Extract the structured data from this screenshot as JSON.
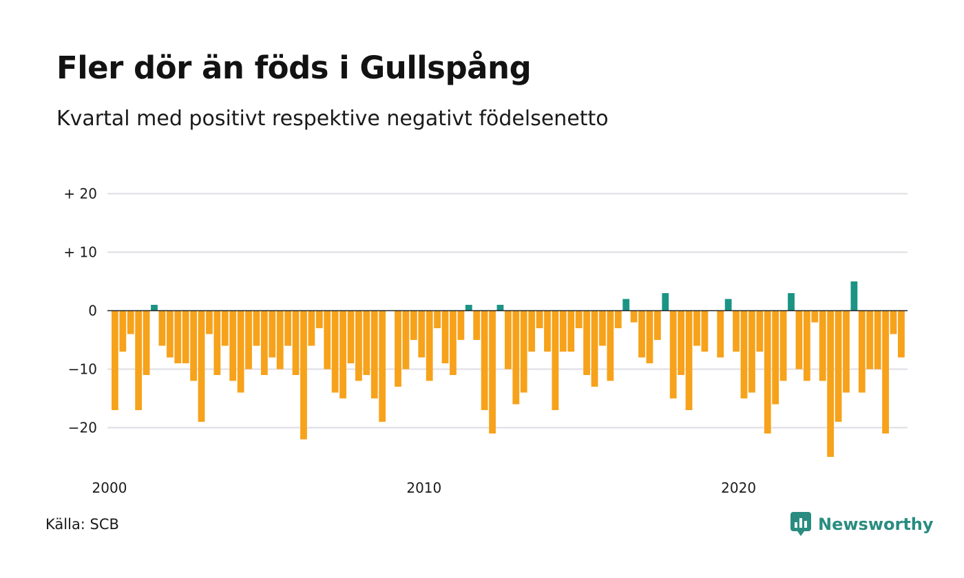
{
  "title": "Fler dör än föds i Gullspång",
  "subtitle": "Kvartal med positivt respektive negativt födelsenetto",
  "source": "Källa: SCB",
  "brand": "Newsworthy",
  "colors": {
    "positive": "#1b9484",
    "negative": "#f7a21b",
    "grid": "#dddde3",
    "zero_line": "#222222",
    "brand": "#2a8c80"
  },
  "chart_data": {
    "type": "bar",
    "title": "Fler dör än föds i Gullspång",
    "subtitle": "Kvartal med positivt respektive negativt födelsenetto",
    "xlabel": "",
    "ylabel": "",
    "ylim": [
      -27,
      22
    ],
    "y_ticks": [
      {
        "value": 20,
        "label": "+ 20"
      },
      {
        "value": 10,
        "label": "+ 10"
      },
      {
        "value": 0,
        "label": "0"
      },
      {
        "value": -10,
        "label": "−10"
      },
      {
        "value": -20,
        "label": "−20"
      }
    ],
    "x_ticks": [
      {
        "quarter_index": 0,
        "label": "2000"
      },
      {
        "quarter_index": 40,
        "label": "2010"
      },
      {
        "quarter_index": 80,
        "label": "2020"
      }
    ],
    "start": "2000 Q1",
    "frequency": "quarter",
    "grid": true,
    "values": [
      -17,
      -7,
      -4,
      -17,
      -11,
      1,
      -6,
      -8,
      -9,
      -9,
      -12,
      -19,
      -4,
      -11,
      -6,
      -12,
      -14,
      -10,
      -6,
      -11,
      -8,
      -10,
      -6,
      -11,
      -22,
      -6,
      -3,
      -10,
      -14,
      -15,
      -9,
      -12,
      -11,
      -15,
      -19,
      0,
      -13,
      -10,
      -5,
      -8,
      -12,
      -3,
      -9,
      -11,
      -5,
      1,
      -5,
      -17,
      -21,
      1,
      -10,
      -16,
      -14,
      -7,
      -3,
      -7,
      -17,
      -7,
      -7,
      -3,
      -11,
      -13,
      -6,
      -12,
      -3,
      2,
      -2,
      -8,
      -9,
      -5,
      3,
      -15,
      -11,
      -17,
      -6,
      -7,
      0,
      -8,
      2,
      -7,
      -15,
      -14,
      -7,
      -21,
      -16,
      -12,
      3,
      -10,
      -12,
      -2,
      -12,
      -25,
      -19,
      -14,
      5,
      -14,
      -10,
      -10,
      -21,
      -4,
      -8
    ]
  }
}
